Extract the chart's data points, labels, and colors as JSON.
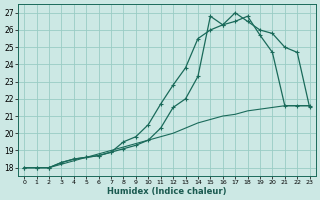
{
  "xlabel": "Humidex (Indice chaleur)",
  "bg_color": "#cce8e4",
  "grid_color": "#99ccc4",
  "line_color": "#1a6a5a",
  "xlim": [
    -0.5,
    23.5
  ],
  "ylim": [
    17.5,
    27.5
  ],
  "yticks": [
    18,
    19,
    20,
    21,
    22,
    23,
    24,
    25,
    26,
    27
  ],
  "xticks": [
    0,
    1,
    2,
    3,
    4,
    5,
    6,
    7,
    8,
    9,
    10,
    11,
    12,
    13,
    14,
    15,
    16,
    17,
    18,
    19,
    20,
    21,
    22,
    23
  ],
  "curve1_x": [
    0,
    1,
    2,
    3,
    4,
    5,
    6,
    7,
    8,
    9,
    10,
    11,
    12,
    13,
    14,
    15,
    16,
    17,
    18,
    19,
    20,
    21,
    22,
    23
  ],
  "curve1_y": [
    18.0,
    18.0,
    18.0,
    18.3,
    18.5,
    18.6,
    18.7,
    18.9,
    19.1,
    19.3,
    19.6,
    20.3,
    21.5,
    22.0,
    23.3,
    26.8,
    26.3,
    27.0,
    26.5,
    26.0,
    25.8,
    25.0,
    24.7,
    21.5
  ],
  "curve2_x": [
    0,
    1,
    2,
    3,
    4,
    5,
    6,
    7,
    8,
    9,
    10,
    11,
    12,
    13,
    14,
    15,
    16,
    17,
    18,
    19,
    20,
    21,
    22,
    23
  ],
  "curve2_y": [
    18.0,
    18.0,
    18.0,
    18.3,
    18.5,
    18.6,
    18.7,
    18.9,
    19.5,
    19.8,
    20.5,
    21.7,
    22.8,
    23.8,
    25.5,
    26.0,
    26.3,
    26.5,
    26.8,
    25.7,
    24.7,
    21.6,
    21.6,
    21.6
  ],
  "curve3_x": [
    0,
    1,
    2,
    3,
    4,
    5,
    6,
    7,
    8,
    9,
    10,
    11,
    12,
    13,
    14,
    15,
    16,
    17,
    18,
    19,
    20,
    21,
    22,
    23
  ],
  "curve3_y": [
    18.0,
    18.0,
    18.0,
    18.2,
    18.4,
    18.6,
    18.8,
    19.0,
    19.2,
    19.4,
    19.6,
    19.8,
    20.0,
    20.3,
    20.6,
    20.8,
    21.0,
    21.1,
    21.3,
    21.4,
    21.5,
    21.6,
    21.6,
    21.6
  ]
}
